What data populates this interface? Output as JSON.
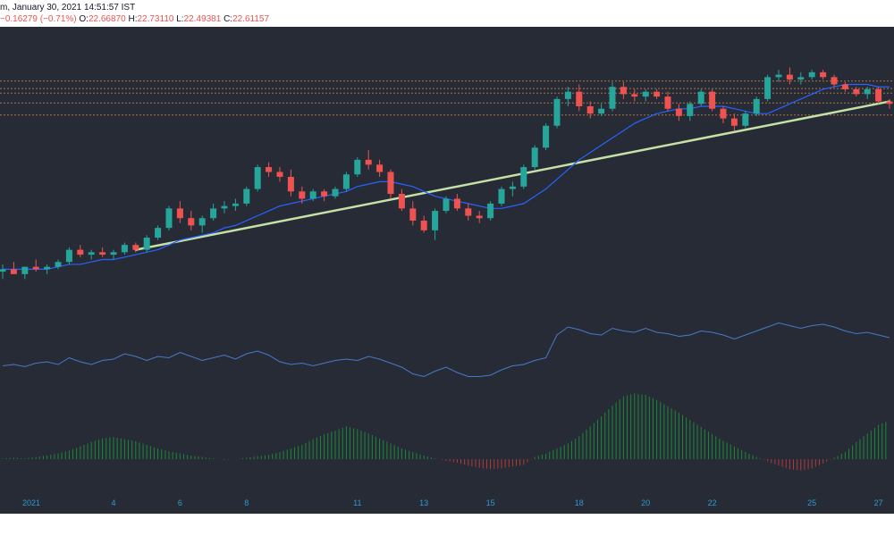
{
  "header": {
    "title_fragment": "m, January 30, 2021 14:51:57 IST",
    "change": "−0.16279 (−0.71%)",
    "o_label": "O:",
    "o_value": "22.66870",
    "h_label": "H:",
    "h_value": "22.73110",
    "l_label": "L:",
    "l_value": "22.49381",
    "c_label": "C:",
    "c_value": "22.61157"
  },
  "colors": {
    "background": "#262b36",
    "up": "#26a69a",
    "down": "#ef5350",
    "ma_line": "#2962ff",
    "trendline": "#c5e1a5",
    "hline": "#c8804b",
    "rsi_line": "#4a78c8",
    "axis_text": "#2f9bd6"
  },
  "chart_data": {
    "type": "candlestick",
    "x_labels": [
      "2021",
      "4",
      "6",
      "8",
      "11",
      "13",
      "15",
      "18",
      "20",
      "22",
      "25",
      "27"
    ],
    "horizontal_levels": [
      27.24,
      26.93,
      26.74,
      26.34,
      25.84
    ],
    "candles": [
      [
        19.4,
        19.7,
        19.1,
        19.5
      ],
      [
        19.5,
        19.8,
        19.3,
        19.3
      ],
      [
        19.3,
        19.6,
        19.1,
        19.6
      ],
      [
        19.6,
        19.9,
        19.4,
        19.5
      ],
      [
        19.5,
        19.7,
        19.3,
        19.6
      ],
      [
        19.6,
        19.9,
        19.5,
        19.8
      ],
      [
        19.8,
        20.4,
        19.7,
        20.3
      ],
      [
        20.3,
        20.5,
        20.0,
        20.1
      ],
      [
        20.1,
        20.3,
        19.9,
        20.2
      ],
      [
        20.2,
        20.4,
        20.0,
        20.1
      ],
      [
        20.1,
        20.3,
        19.9,
        20.2
      ],
      [
        20.2,
        20.6,
        20.1,
        20.5
      ],
      [
        20.5,
        20.6,
        20.2,
        20.3
      ],
      [
        20.3,
        20.9,
        20.2,
        20.8
      ],
      [
        20.8,
        21.3,
        20.7,
        21.2
      ],
      [
        21.2,
        22.1,
        21.1,
        22.0
      ],
      [
        22.0,
        22.3,
        21.4,
        21.6
      ],
      [
        21.6,
        21.9,
        21.1,
        21.3
      ],
      [
        21.3,
        21.7,
        21.0,
        21.6
      ],
      [
        21.6,
        22.2,
        21.5,
        22.0
      ],
      [
        22.0,
        22.3,
        21.8,
        22.1
      ],
      [
        22.1,
        22.4,
        21.9,
        22.2
      ],
      [
        22.2,
        22.9,
        22.1,
        22.8
      ],
      [
        22.8,
        23.8,
        22.7,
        23.7
      ],
      [
        23.7,
        23.9,
        23.3,
        23.5
      ],
      [
        23.5,
        23.7,
        23.1,
        23.3
      ],
      [
        23.3,
        23.6,
        22.5,
        22.7
      ],
      [
        22.7,
        22.9,
        22.2,
        22.4
      ],
      [
        22.4,
        22.8,
        22.3,
        22.7
      ],
      [
        22.7,
        22.8,
        22.3,
        22.5
      ],
      [
        22.5,
        22.9,
        22.4,
        22.8
      ],
      [
        22.8,
        23.5,
        22.7,
        23.4
      ],
      [
        23.4,
        24.1,
        23.3,
        24.0
      ],
      [
        24.0,
        24.4,
        23.6,
        23.8
      ],
      [
        23.8,
        24.0,
        23.3,
        23.5
      ],
      [
        23.5,
        23.6,
        22.4,
        22.6
      ],
      [
        22.6,
        22.8,
        21.9,
        22.0
      ],
      [
        22.0,
        22.3,
        21.3,
        21.5
      ],
      [
        21.5,
        21.7,
        21.0,
        21.1
      ],
      [
        21.1,
        22.0,
        20.7,
        21.9
      ],
      [
        21.9,
        22.5,
        21.8,
        22.4
      ],
      [
        22.4,
        22.6,
        21.9,
        22.0
      ],
      [
        22.0,
        22.2,
        21.5,
        21.7
      ],
      [
        21.7,
        21.9,
        21.4,
        21.6
      ],
      [
        21.6,
        22.3,
        21.5,
        22.2
      ],
      [
        22.2,
        22.9,
        22.1,
        22.8
      ],
      [
        22.8,
        23.1,
        22.5,
        22.9
      ],
      [
        22.9,
        23.8,
        22.8,
        23.7
      ],
      [
        23.7,
        24.6,
        23.6,
        24.5
      ],
      [
        24.5,
        25.5,
        24.4,
        25.4
      ],
      [
        25.4,
        26.6,
        25.3,
        26.5
      ],
      [
        26.5,
        27.0,
        26.2,
        26.8
      ],
      [
        26.8,
        27.1,
        26.0,
        26.2
      ],
      [
        26.2,
        26.4,
        25.7,
        25.9
      ],
      [
        25.9,
        26.3,
        25.8,
        26.1
      ],
      [
        26.1,
        27.2,
        26.0,
        27.0
      ],
      [
        27.0,
        27.2,
        26.5,
        26.7
      ],
      [
        26.7,
        26.9,
        26.4,
        26.6
      ],
      [
        26.6,
        26.9,
        26.4,
        26.8
      ],
      [
        26.8,
        26.9,
        26.5,
        26.6
      ],
      [
        26.6,
        26.8,
        26.0,
        26.1
      ],
      [
        26.1,
        26.3,
        25.6,
        25.8
      ],
      [
        25.8,
        26.4,
        25.6,
        26.3
      ],
      [
        26.3,
        26.9,
        26.2,
        26.8
      ],
      [
        26.8,
        26.9,
        26.0,
        26.1
      ],
      [
        26.1,
        26.2,
        25.5,
        25.7
      ],
      [
        25.7,
        25.9,
        25.2,
        25.4
      ],
      [
        25.4,
        26.0,
        25.3,
        25.9
      ],
      [
        25.9,
        26.6,
        25.8,
        26.5
      ],
      [
        26.5,
        27.5,
        26.4,
        27.4
      ],
      [
        27.4,
        27.7,
        27.2,
        27.5
      ],
      [
        27.5,
        27.8,
        27.1,
        27.3
      ],
      [
        27.3,
        27.6,
        27.1,
        27.4
      ],
      [
        27.4,
        27.7,
        27.3,
        27.6
      ],
      [
        27.6,
        27.7,
        27.3,
        27.4
      ],
      [
        27.4,
        27.5,
        27.0,
        27.1
      ],
      [
        27.1,
        27.2,
        26.8,
        26.9
      ],
      [
        26.9,
        27.0,
        26.6,
        26.7
      ],
      [
        26.7,
        27.0,
        26.5,
        26.9
      ],
      [
        26.9,
        27.0,
        26.3,
        26.4
      ],
      [
        26.4,
        26.5,
        26.1,
        26.3
      ]
    ],
    "ma": [
      19.5,
      19.5,
      19.5,
      19.5,
      19.5,
      19.6,
      19.7,
      19.7,
      19.8,
      19.9,
      19.9,
      20.0,
      20.1,
      20.2,
      20.3,
      20.5,
      20.7,
      20.8,
      20.9,
      21.0,
      21.2,
      21.3,
      21.5,
      21.7,
      21.9,
      22.1,
      22.2,
      22.3,
      22.4,
      22.5,
      22.6,
      22.7,
      22.9,
      23.0,
      23.1,
      23.1,
      23.0,
      22.9,
      22.7,
      22.5,
      22.4,
      22.3,
      22.2,
      22.1,
      22.0,
      22.0,
      22.1,
      22.2,
      22.5,
      22.8,
      23.2,
      23.6,
      24.0,
      24.3,
      24.6,
      24.9,
      25.2,
      25.5,
      25.7,
      25.9,
      26.0,
      26.1,
      26.1,
      26.2,
      26.2,
      26.2,
      26.1,
      26.0,
      25.9,
      25.9,
      26.1,
      26.3,
      26.5,
      26.7,
      26.9,
      27.0,
      27.1,
      27.1,
      27.1,
      27.0,
      27.0
    ],
    "trendline": [
      [
        12,
        20.3
      ],
      [
        80,
        26.4
      ]
    ],
    "rsi": [
      43.5,
      44.0,
      43.2,
      44.5,
      45.0,
      44.0,
      46.5,
      45.0,
      44.0,
      45.5,
      46.0,
      48.0,
      47.0,
      45.5,
      47.0,
      46.5,
      48.5,
      47.0,
      45.5,
      46.5,
      47.5,
      46.0,
      48.0,
      49.0,
      47.5,
      45.0,
      44.0,
      44.5,
      43.5,
      44.5,
      45.5,
      46.0,
      45.5,
      47.0,
      46.0,
      44.5,
      43.0,
      40.5,
      39.5,
      41.5,
      43.0,
      41.0,
      39.5,
      39.5,
      40.0,
      42.0,
      43.5,
      44.0,
      45.5,
      46.5,
      55.0,
      58.0,
      57.0,
      55.5,
      55.0,
      57.5,
      56.5,
      56.0,
      57.5,
      56.0,
      55.5,
      54.5,
      55.0,
      56.5,
      56.0,
      55.0,
      53.5,
      55.0,
      56.5,
      58.0,
      59.5,
      58.5,
      57.5,
      58.5,
      59.0,
      58.0,
      56.5,
      55.5,
      56.0,
      55.0,
      54.0
    ],
    "histogram": [
      0.1,
      0.2,
      0.1,
      0.3,
      0.5,
      0.8,
      1.2,
      1.8,
      2.4,
      2.9,
      3.1,
      2.8,
      2.5,
      2.0,
      1.5,
      1.1,
      0.8,
      0.5,
      0.3,
      0.1,
      -0.1,
      0.0,
      0.2,
      0.4,
      0.6,
      1.0,
      1.5,
      2.0,
      2.8,
      3.5,
      4.0,
      4.6,
      4.2,
      3.6,
      2.9,
      2.2,
      1.5,
      1.0,
      0.5,
      0.1,
      -0.2,
      -0.5,
      -0.9,
      -1.2,
      -1.4,
      -1.3,
      -1.0,
      -0.8,
      0.3,
      0.8,
      1.5,
      2.2,
      3.2,
      4.6,
      6.0,
      7.5,
      8.8,
      9.2,
      9.0,
      8.3,
      7.4,
      6.5,
      5.5,
      4.5,
      3.5,
      2.6,
      1.8,
      1.0,
      0.3,
      -0.3,
      -0.9,
      -1.4,
      -1.6,
      -1.3,
      -0.6,
      0.2,
      1.0,
      2.4,
      3.6,
      4.8,
      5.4
    ]
  }
}
